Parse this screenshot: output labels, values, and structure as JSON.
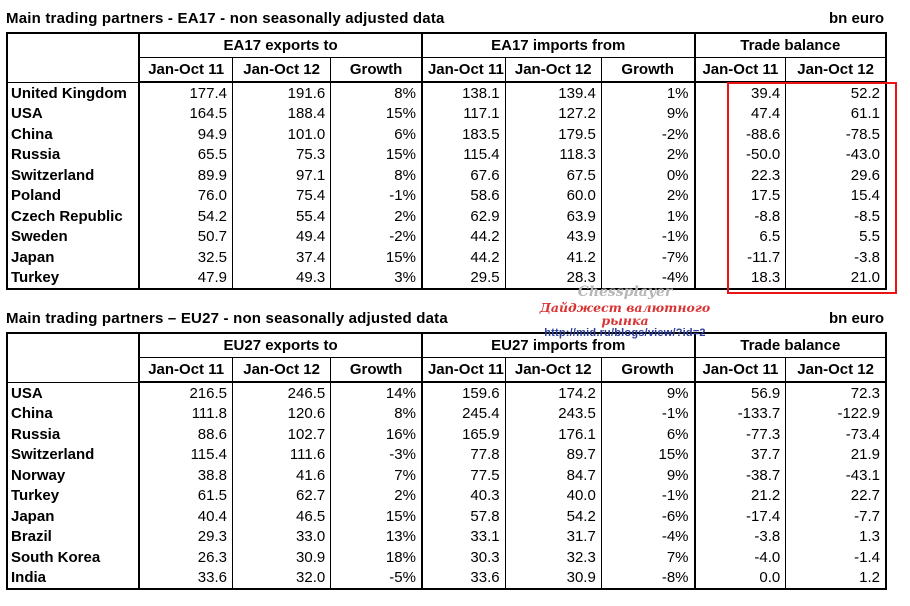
{
  "colors": {
    "highlight_box": "#ea1212",
    "watermark_brand": "#b6b6b6",
    "watermark_subtitle": "#d93434",
    "watermark_url": "#2c3e9b",
    "text": "#000000",
    "background": "#ffffff"
  },
  "watermark": {
    "brand": "Chessplayer",
    "subtitle": "Дайджест валютного рынка",
    "url": "http://mid.ru/blogs/view/?id=2"
  },
  "tables": [
    {
      "title": "Main trading partners - EA17 - non seasonally adjusted data",
      "unit": "bn euro",
      "groups": [
        "EA17 exports to",
        "EA17 imports from",
        "Trade balance"
      ],
      "columns": [
        "Jan-Oct 11",
        "Jan-Oct 12",
        "Growth",
        "Jan-Oct 11",
        "Jan-Oct 12",
        "Growth",
        "Jan-Oct 11",
        "Jan-Oct 12"
      ],
      "rows": [
        [
          "United Kingdom",
          "177.4",
          "191.6",
          "8%",
          "138.1",
          "139.4",
          "1%",
          "39.4",
          "52.2"
        ],
        [
          "USA",
          "164.5",
          "188.4",
          "15%",
          "117.1",
          "127.2",
          "9%",
          "47.4",
          "61.1"
        ],
        [
          "China",
          "94.9",
          "101.0",
          "6%",
          "183.5",
          "179.5",
          "-2%",
          "-88.6",
          "-78.5"
        ],
        [
          "Russia",
          "65.5",
          "75.3",
          "15%",
          "115.4",
          "118.3",
          "2%",
          "-50.0",
          "-43.0"
        ],
        [
          "Switzerland",
          "89.9",
          "97.1",
          "8%",
          "67.6",
          "67.5",
          "0%",
          "22.3",
          "29.6"
        ],
        [
          "Poland",
          "76.0",
          "75.4",
          "-1%",
          "58.6",
          "60.0",
          "2%",
          "17.5",
          "15.4"
        ],
        [
          "Czech Republic",
          "54.2",
          "55.4",
          "2%",
          "62.9",
          "63.9",
          "1%",
          "-8.8",
          "-8.5"
        ],
        [
          "Sweden",
          "50.7",
          "49.4",
          "-2%",
          "44.2",
          "43.9",
          "-1%",
          "6.5",
          "5.5"
        ],
        [
          "Japan",
          "32.5",
          "37.4",
          "15%",
          "44.2",
          "41.2",
          "-7%",
          "-11.7",
          "-3.8"
        ],
        [
          "Turkey",
          "47.9",
          "49.3",
          "3%",
          "29.5",
          "28.3",
          "-4%",
          "18.3",
          "21.0"
        ]
      ]
    },
    {
      "title": "Main trading partners – EU27 - non seasonally adjusted data",
      "unit": "bn euro",
      "groups": [
        "EU27 exports to",
        "EU27 imports from",
        "Trade balance"
      ],
      "columns": [
        "Jan-Oct 11",
        "Jan-Oct 12",
        "Growth",
        "Jan-Oct 11",
        "Jan-Oct 12",
        "Growth",
        "Jan-Oct 11",
        "Jan-Oct 12"
      ],
      "rows": [
        [
          "USA",
          "216.5",
          "246.5",
          "14%",
          "159.6",
          "174.2",
          "9%",
          "56.9",
          "72.3"
        ],
        [
          "China",
          "111.8",
          "120.6",
          "8%",
          "245.4",
          "243.5",
          "-1%",
          "-133.7",
          "-122.9"
        ],
        [
          "Russia",
          "88.6",
          "102.7",
          "16%",
          "165.9",
          "176.1",
          "6%",
          "-77.3",
          "-73.4"
        ],
        [
          "Switzerland",
          "115.4",
          "111.6",
          "-3%",
          "77.8",
          "89.7",
          "15%",
          "37.7",
          "21.9"
        ],
        [
          "Norway",
          "38.8",
          "41.6",
          "7%",
          "77.5",
          "84.7",
          "9%",
          "-38.7",
          "-43.1"
        ],
        [
          "Turkey",
          "61.5",
          "62.7",
          "2%",
          "40.3",
          "40.0",
          "-1%",
          "21.2",
          "22.7"
        ],
        [
          "Japan",
          "40.4",
          "46.5",
          "15%",
          "57.8",
          "54.2",
          "-6%",
          "-17.4",
          "-7.7"
        ],
        [
          "Brazil",
          "29.3",
          "33.0",
          "13%",
          "33.1",
          "31.7",
          "-4%",
          "-3.8",
          "1.3"
        ],
        [
          "South Korea",
          "26.3",
          "30.9",
          "18%",
          "30.3",
          "32.3",
          "7%",
          "-4.0",
          "-1.4"
        ],
        [
          "India",
          "33.6",
          "32.0",
          "-5%",
          "33.6",
          "30.9",
          "-8%",
          "0.0",
          "1.2"
        ]
      ]
    }
  ]
}
